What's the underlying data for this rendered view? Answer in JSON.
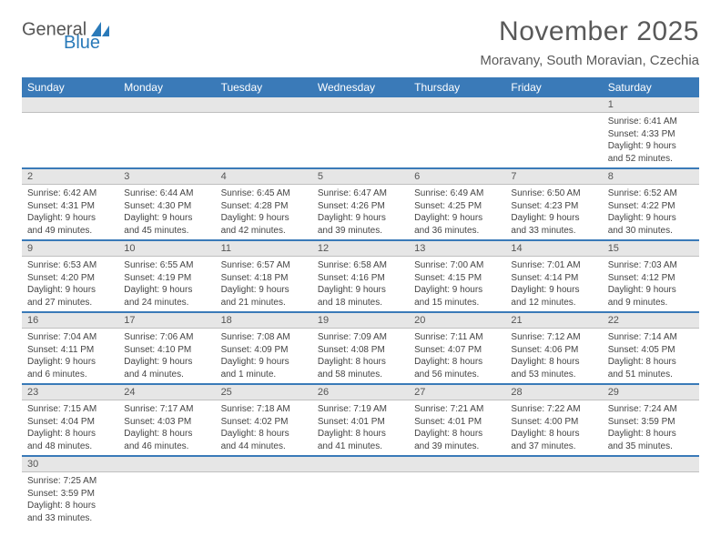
{
  "brand": {
    "part1": "General",
    "part2": "Blue"
  },
  "title": "November 2025",
  "location": "Moravany, South Moravian, Czechia",
  "colors": {
    "header_bg": "#3a7ab8",
    "header_text": "#ffffff",
    "daynum_bg": "#e6e6e6",
    "week_divider": "#3a7ab8",
    "title_color": "#595959"
  },
  "day_headers": [
    "Sunday",
    "Monday",
    "Tuesday",
    "Wednesday",
    "Thursday",
    "Friday",
    "Saturday"
  ],
  "weeks": [
    {
      "nums": [
        "",
        "",
        "",
        "",
        "",
        "",
        "1"
      ],
      "cells": [
        null,
        null,
        null,
        null,
        null,
        null,
        {
          "sunrise": "Sunrise: 6:41 AM",
          "sunset": "Sunset: 4:33 PM",
          "day1": "Daylight: 9 hours",
          "day2": "and 52 minutes."
        }
      ]
    },
    {
      "nums": [
        "2",
        "3",
        "4",
        "5",
        "6",
        "7",
        "8"
      ],
      "cells": [
        {
          "sunrise": "Sunrise: 6:42 AM",
          "sunset": "Sunset: 4:31 PM",
          "day1": "Daylight: 9 hours",
          "day2": "and 49 minutes."
        },
        {
          "sunrise": "Sunrise: 6:44 AM",
          "sunset": "Sunset: 4:30 PM",
          "day1": "Daylight: 9 hours",
          "day2": "and 45 minutes."
        },
        {
          "sunrise": "Sunrise: 6:45 AM",
          "sunset": "Sunset: 4:28 PM",
          "day1": "Daylight: 9 hours",
          "day2": "and 42 minutes."
        },
        {
          "sunrise": "Sunrise: 6:47 AM",
          "sunset": "Sunset: 4:26 PM",
          "day1": "Daylight: 9 hours",
          "day2": "and 39 minutes."
        },
        {
          "sunrise": "Sunrise: 6:49 AM",
          "sunset": "Sunset: 4:25 PM",
          "day1": "Daylight: 9 hours",
          "day2": "and 36 minutes."
        },
        {
          "sunrise": "Sunrise: 6:50 AM",
          "sunset": "Sunset: 4:23 PM",
          "day1": "Daylight: 9 hours",
          "day2": "and 33 minutes."
        },
        {
          "sunrise": "Sunrise: 6:52 AM",
          "sunset": "Sunset: 4:22 PM",
          "day1": "Daylight: 9 hours",
          "day2": "and 30 minutes."
        }
      ]
    },
    {
      "nums": [
        "9",
        "10",
        "11",
        "12",
        "13",
        "14",
        "15"
      ],
      "cells": [
        {
          "sunrise": "Sunrise: 6:53 AM",
          "sunset": "Sunset: 4:20 PM",
          "day1": "Daylight: 9 hours",
          "day2": "and 27 minutes."
        },
        {
          "sunrise": "Sunrise: 6:55 AM",
          "sunset": "Sunset: 4:19 PM",
          "day1": "Daylight: 9 hours",
          "day2": "and 24 minutes."
        },
        {
          "sunrise": "Sunrise: 6:57 AM",
          "sunset": "Sunset: 4:18 PM",
          "day1": "Daylight: 9 hours",
          "day2": "and 21 minutes."
        },
        {
          "sunrise": "Sunrise: 6:58 AM",
          "sunset": "Sunset: 4:16 PM",
          "day1": "Daylight: 9 hours",
          "day2": "and 18 minutes."
        },
        {
          "sunrise": "Sunrise: 7:00 AM",
          "sunset": "Sunset: 4:15 PM",
          "day1": "Daylight: 9 hours",
          "day2": "and 15 minutes."
        },
        {
          "sunrise": "Sunrise: 7:01 AM",
          "sunset": "Sunset: 4:14 PM",
          "day1": "Daylight: 9 hours",
          "day2": "and 12 minutes."
        },
        {
          "sunrise": "Sunrise: 7:03 AM",
          "sunset": "Sunset: 4:12 PM",
          "day1": "Daylight: 9 hours",
          "day2": "and 9 minutes."
        }
      ]
    },
    {
      "nums": [
        "16",
        "17",
        "18",
        "19",
        "20",
        "21",
        "22"
      ],
      "cells": [
        {
          "sunrise": "Sunrise: 7:04 AM",
          "sunset": "Sunset: 4:11 PM",
          "day1": "Daylight: 9 hours",
          "day2": "and 6 minutes."
        },
        {
          "sunrise": "Sunrise: 7:06 AM",
          "sunset": "Sunset: 4:10 PM",
          "day1": "Daylight: 9 hours",
          "day2": "and 4 minutes."
        },
        {
          "sunrise": "Sunrise: 7:08 AM",
          "sunset": "Sunset: 4:09 PM",
          "day1": "Daylight: 9 hours",
          "day2": "and 1 minute."
        },
        {
          "sunrise": "Sunrise: 7:09 AM",
          "sunset": "Sunset: 4:08 PM",
          "day1": "Daylight: 8 hours",
          "day2": "and 58 minutes."
        },
        {
          "sunrise": "Sunrise: 7:11 AM",
          "sunset": "Sunset: 4:07 PM",
          "day1": "Daylight: 8 hours",
          "day2": "and 56 minutes."
        },
        {
          "sunrise": "Sunrise: 7:12 AM",
          "sunset": "Sunset: 4:06 PM",
          "day1": "Daylight: 8 hours",
          "day2": "and 53 minutes."
        },
        {
          "sunrise": "Sunrise: 7:14 AM",
          "sunset": "Sunset: 4:05 PM",
          "day1": "Daylight: 8 hours",
          "day2": "and 51 minutes."
        }
      ]
    },
    {
      "nums": [
        "23",
        "24",
        "25",
        "26",
        "27",
        "28",
        "29"
      ],
      "cells": [
        {
          "sunrise": "Sunrise: 7:15 AM",
          "sunset": "Sunset: 4:04 PM",
          "day1": "Daylight: 8 hours",
          "day2": "and 48 minutes."
        },
        {
          "sunrise": "Sunrise: 7:17 AM",
          "sunset": "Sunset: 4:03 PM",
          "day1": "Daylight: 8 hours",
          "day2": "and 46 minutes."
        },
        {
          "sunrise": "Sunrise: 7:18 AM",
          "sunset": "Sunset: 4:02 PM",
          "day1": "Daylight: 8 hours",
          "day2": "and 44 minutes."
        },
        {
          "sunrise": "Sunrise: 7:19 AM",
          "sunset": "Sunset: 4:01 PM",
          "day1": "Daylight: 8 hours",
          "day2": "and 41 minutes."
        },
        {
          "sunrise": "Sunrise: 7:21 AM",
          "sunset": "Sunset: 4:01 PM",
          "day1": "Daylight: 8 hours",
          "day2": "and 39 minutes."
        },
        {
          "sunrise": "Sunrise: 7:22 AM",
          "sunset": "Sunset: 4:00 PM",
          "day1": "Daylight: 8 hours",
          "day2": "and 37 minutes."
        },
        {
          "sunrise": "Sunrise: 7:24 AM",
          "sunset": "Sunset: 3:59 PM",
          "day1": "Daylight: 8 hours",
          "day2": "and 35 minutes."
        }
      ]
    },
    {
      "nums": [
        "30",
        "",
        "",
        "",
        "",
        "",
        ""
      ],
      "cells": [
        {
          "sunrise": "Sunrise: 7:25 AM",
          "sunset": "Sunset: 3:59 PM",
          "day1": "Daylight: 8 hours",
          "day2": "and 33 minutes."
        },
        null,
        null,
        null,
        null,
        null,
        null
      ]
    }
  ]
}
